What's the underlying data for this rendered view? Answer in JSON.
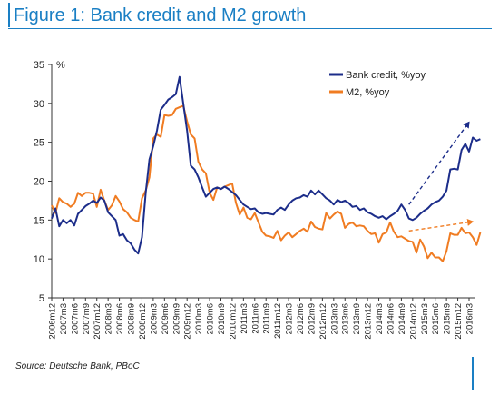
{
  "figure": {
    "title": "Figure 1: Bank credit and M2 growth",
    "source": "Source: Deutsche Bank, PBoC"
  },
  "colors": {
    "accent": "#1a7fc4",
    "bank_credit": "#1c2d8a",
    "m2": "#f07c22"
  },
  "chart_data": {
    "type": "line",
    "ylabel": "%",
    "ylim": [
      5,
      35
    ],
    "yticks": [
      5,
      10,
      15,
      20,
      25,
      30,
      35
    ],
    "x_start": "2006m12",
    "x_end": "2016m3",
    "xticks": [
      "2006m12",
      "2007m3",
      "2007m6",
      "2007m9",
      "2007m12",
      "2008m3",
      "2008m6",
      "2008m9",
      "2008m12",
      "2009m3",
      "2009m6",
      "2009m9",
      "2009m12",
      "2010m3",
      "2010m6",
      "2010m9",
      "2010m12",
      "2011m3",
      "2011m6",
      "2011m9",
      "2011m12",
      "2012m3",
      "2012m6",
      "2012m9",
      "2012m12",
      "2013m3",
      "2013m6",
      "2013m9",
      "2013m12",
      "2014m3",
      "2014m6",
      "2014m9",
      "2014m12",
      "2015m3",
      "2015m6",
      "2015m9",
      "2015m12",
      "2016m3"
    ],
    "legend_position": "top-right",
    "grid": false,
    "series": [
      {
        "name": "Bank credit, %yoy",
        "color": "#1c2d8a",
        "points": [
          [
            "2006m12",
            15.2
          ],
          [
            "2007m1",
            16.5
          ],
          [
            "2007m2",
            14.2
          ],
          [
            "2007m3",
            15.0
          ],
          [
            "2007m4",
            14.6
          ],
          [
            "2007m5",
            15.0
          ],
          [
            "2007m6",
            14.3
          ],
          [
            "2007m7",
            15.8
          ],
          [
            "2007m8",
            16.3
          ],
          [
            "2007m9",
            16.8
          ],
          [
            "2007m10",
            17.1
          ],
          [
            "2007m11",
            17.5
          ],
          [
            "2007m12",
            17.2
          ],
          [
            "2008m1",
            17.9
          ],
          [
            "2008m2",
            17.5
          ],
          [
            "2008m3",
            16.0
          ],
          [
            "2008m4",
            15.5
          ],
          [
            "2008m5",
            15.0
          ],
          [
            "2008m6",
            13.0
          ],
          [
            "2008m7",
            13.2
          ],
          [
            "2008m8",
            12.4
          ],
          [
            "2008m9",
            12.0
          ],
          [
            "2008m10",
            11.2
          ],
          [
            "2008m11",
            10.7
          ],
          [
            "2008m12",
            12.8
          ],
          [
            "2009m1",
            18.5
          ],
          [
            "2009m2",
            22.8
          ],
          [
            "2009m3",
            24.5
          ],
          [
            "2009m4",
            26.5
          ],
          [
            "2009m5",
            29.2
          ],
          [
            "2009m6",
            29.8
          ],
          [
            "2009m7",
            30.5
          ],
          [
            "2009m8",
            30.8
          ],
          [
            "2009m9",
            31.2
          ],
          [
            "2009m10",
            33.4
          ],
          [
            "2009m11",
            30.0
          ],
          [
            "2009m12",
            26.5
          ],
          [
            "2010m1",
            22.0
          ],
          [
            "2010m2",
            21.5
          ],
          [
            "2010m3",
            20.5
          ],
          [
            "2010m4",
            19.2
          ],
          [
            "2010m5",
            18.0
          ],
          [
            "2010m6",
            18.5
          ],
          [
            "2010m7",
            19.0
          ],
          [
            "2010m8",
            19.2
          ],
          [
            "2010m9",
            19.0
          ],
          [
            "2010m10",
            19.3
          ],
          [
            "2010m11",
            19.0
          ],
          [
            "2010m12",
            18.6
          ],
          [
            "2011m1",
            18.2
          ],
          [
            "2011m2",
            17.6
          ],
          [
            "2011m3",
            17.0
          ],
          [
            "2011m4",
            16.7
          ],
          [
            "2011m5",
            16.4
          ],
          [
            "2011m6",
            16.5
          ],
          [
            "2011m7",
            16.0
          ],
          [
            "2011m8",
            15.8
          ],
          [
            "2011m9",
            15.9
          ],
          [
            "2011m10",
            15.8
          ],
          [
            "2011m11",
            15.7
          ],
          [
            "2011m12",
            16.3
          ],
          [
            "2012m1",
            16.6
          ],
          [
            "2012m2",
            16.3
          ],
          [
            "2012m3",
            17.0
          ],
          [
            "2012m4",
            17.5
          ],
          [
            "2012m5",
            17.8
          ],
          [
            "2012m6",
            17.9
          ],
          [
            "2012m7",
            18.2
          ],
          [
            "2012m8",
            18.0
          ],
          [
            "2012m9",
            18.8
          ],
          [
            "2012m10",
            18.3
          ],
          [
            "2012m11",
            18.8
          ],
          [
            "2012m12",
            18.3
          ],
          [
            "2013m1",
            17.8
          ],
          [
            "2013m2",
            17.5
          ],
          [
            "2013m3",
            17.0
          ],
          [
            "2013m4",
            17.6
          ],
          [
            "2013m5",
            17.3
          ],
          [
            "2013m6",
            17.5
          ],
          [
            "2013m7",
            17.2
          ],
          [
            "2013m8",
            16.7
          ],
          [
            "2013m9",
            16.8
          ],
          [
            "2013m10",
            16.3
          ],
          [
            "2013m11",
            16.5
          ],
          [
            "2013m12",
            16.0
          ],
          [
            "2014m1",
            15.8
          ],
          [
            "2014m2",
            15.5
          ],
          [
            "2014m3",
            15.3
          ],
          [
            "2014m4",
            15.5
          ],
          [
            "2014m5",
            15.1
          ],
          [
            "2014m6",
            15.5
          ],
          [
            "2014m7",
            15.8
          ],
          [
            "2014m8",
            16.2
          ],
          [
            "2014m9",
            17.0
          ],
          [
            "2014m10",
            16.3
          ],
          [
            "2014m11",
            15.2
          ],
          [
            "2014m12",
            15.0
          ],
          [
            "2015m1",
            15.3
          ],
          [
            "2015m2",
            15.8
          ],
          [
            "2015m3",
            16.2
          ],
          [
            "2015m4",
            16.5
          ],
          [
            "2015m5",
            17.0
          ],
          [
            "2015m6",
            17.3
          ],
          [
            "2015m7",
            17.5
          ],
          [
            "2015m8",
            18.0
          ],
          [
            "2015m9",
            18.8
          ],
          [
            "2015m10",
            21.5
          ],
          [
            "2015m11",
            21.6
          ],
          [
            "2015m12",
            21.5
          ],
          [
            "2016m1",
            24.0
          ],
          [
            "2016m2",
            24.8
          ],
          [
            "2016m3",
            23.8
          ],
          [
            "2016m4",
            25.6
          ],
          [
            "2016m5",
            25.2
          ],
          [
            "2016m6",
            25.4
          ]
        ]
      },
      {
        "name": "M2, %yoy",
        "color": "#f07c22",
        "points": [
          [
            "2006m12",
            16.9
          ],
          [
            "2007m1",
            15.9
          ],
          [
            "2007m2",
            17.8
          ],
          [
            "2007m3",
            17.3
          ],
          [
            "2007m4",
            17.1
          ],
          [
            "2007m5",
            16.7
          ],
          [
            "2007m6",
            17.1
          ],
          [
            "2007m7",
            18.5
          ],
          [
            "2007m8",
            18.1
          ],
          [
            "2007m9",
            18.5
          ],
          [
            "2007m10",
            18.5
          ],
          [
            "2007m11",
            18.4
          ],
          [
            "2007m12",
            16.7
          ],
          [
            "2008m1",
            18.9
          ],
          [
            "2008m2",
            17.5
          ],
          [
            "2008m3",
            16.3
          ],
          [
            "2008m4",
            16.9
          ],
          [
            "2008m5",
            18.1
          ],
          [
            "2008m6",
            17.4
          ],
          [
            "2008m7",
            16.4
          ],
          [
            "2008m8",
            16.0
          ],
          [
            "2008m9",
            15.3
          ],
          [
            "2008m10",
            15.0
          ],
          [
            "2008m11",
            14.8
          ],
          [
            "2008m12",
            17.8
          ],
          [
            "2009m1",
            18.8
          ],
          [
            "2009m2",
            20.5
          ],
          [
            "2009m3",
            25.5
          ],
          [
            "2009m4",
            26.0
          ],
          [
            "2009m5",
            25.7
          ],
          [
            "2009m6",
            28.5
          ],
          [
            "2009m7",
            28.4
          ],
          [
            "2009m8",
            28.5
          ],
          [
            "2009m9",
            29.3
          ],
          [
            "2009m10",
            29.5
          ],
          [
            "2009m11",
            29.7
          ],
          [
            "2009m12",
            27.7
          ],
          [
            "2010m1",
            26.0
          ],
          [
            "2010m2",
            25.5
          ],
          [
            "2010m3",
            22.5
          ],
          [
            "2010m4",
            21.5
          ],
          [
            "2010m5",
            21.0
          ],
          [
            "2010m6",
            18.5
          ],
          [
            "2010m7",
            17.6
          ],
          [
            "2010m8",
            19.2
          ],
          [
            "2010m9",
            19.0
          ],
          [
            "2010m10",
            19.3
          ],
          [
            "2010m11",
            19.5
          ],
          [
            "2010m12",
            19.7
          ],
          [
            "2011m1",
            17.2
          ],
          [
            "2011m2",
            15.7
          ],
          [
            "2011m3",
            16.6
          ],
          [
            "2011m4",
            15.3
          ],
          [
            "2011m5",
            15.1
          ],
          [
            "2011m6",
            15.9
          ],
          [
            "2011m7",
            14.7
          ],
          [
            "2011m8",
            13.5
          ],
          [
            "2011m9",
            13.0
          ],
          [
            "2011m10",
            12.9
          ],
          [
            "2011m11",
            12.7
          ],
          [
            "2011m12",
            13.6
          ],
          [
            "2012m1",
            12.4
          ],
          [
            "2012m2",
            13.0
          ],
          [
            "2012m3",
            13.4
          ],
          [
            "2012m4",
            12.8
          ],
          [
            "2012m5",
            13.2
          ],
          [
            "2012m6",
            13.6
          ],
          [
            "2012m7",
            13.9
          ],
          [
            "2012m8",
            13.5
          ],
          [
            "2012m9",
            14.8
          ],
          [
            "2012m10",
            14.1
          ],
          [
            "2012m11",
            13.9
          ],
          [
            "2012m12",
            13.8
          ],
          [
            "2013m1",
            15.9
          ],
          [
            "2013m2",
            15.2
          ],
          [
            "2013m3",
            15.7
          ],
          [
            "2013m4",
            16.1
          ],
          [
            "2013m5",
            15.8
          ],
          [
            "2013m6",
            14.0
          ],
          [
            "2013m7",
            14.5
          ],
          [
            "2013m8",
            14.7
          ],
          [
            "2013m9",
            14.2
          ],
          [
            "2013m10",
            14.3
          ],
          [
            "2013m11",
            14.2
          ],
          [
            "2013m12",
            13.6
          ],
          [
            "2014m1",
            13.2
          ],
          [
            "2014m2",
            13.3
          ],
          [
            "2014m3",
            12.1
          ],
          [
            "2014m4",
            13.2
          ],
          [
            "2014m5",
            13.4
          ],
          [
            "2014m6",
            14.7
          ],
          [
            "2014m7",
            13.5
          ],
          [
            "2014m8",
            12.8
          ],
          [
            "2014m9",
            12.9
          ],
          [
            "2014m10",
            12.6
          ],
          [
            "2014m11",
            12.3
          ],
          [
            "2014m12",
            12.2
          ],
          [
            "2015m1",
            10.8
          ],
          [
            "2015m2",
            12.5
          ],
          [
            "2015m3",
            11.6
          ],
          [
            "2015m4",
            10.1
          ],
          [
            "2015m5",
            10.8
          ],
          [
            "2015m6",
            10.2
          ],
          [
            "2015m7",
            10.2
          ],
          [
            "2015m8",
            9.7
          ],
          [
            "2015m9",
            11.0
          ],
          [
            "2015m10",
            13.3
          ],
          [
            "2015m11",
            13.1
          ],
          [
            "2015m12",
            13.1
          ],
          [
            "2016m1",
            14.0
          ],
          [
            "2016m2",
            13.3
          ],
          [
            "2016m3",
            13.4
          ],
          [
            "2016m4",
            12.8
          ],
          [
            "2016m5",
            11.8
          ],
          [
            "2016m6",
            13.4
          ]
        ]
      }
    ],
    "annotations": [
      {
        "type": "trend-arrow",
        "series": "Bank credit, %yoy",
        "style": "dashed",
        "from": [
          "2014m11",
          17.0
        ],
        "to": [
          "2016m3",
          27.6
        ]
      },
      {
        "type": "trend-arrow",
        "series": "M2, %yoy",
        "style": "dashed",
        "from": [
          "2014m11",
          13.6
        ],
        "to": [
          "2016m4",
          14.8
        ]
      }
    ]
  }
}
